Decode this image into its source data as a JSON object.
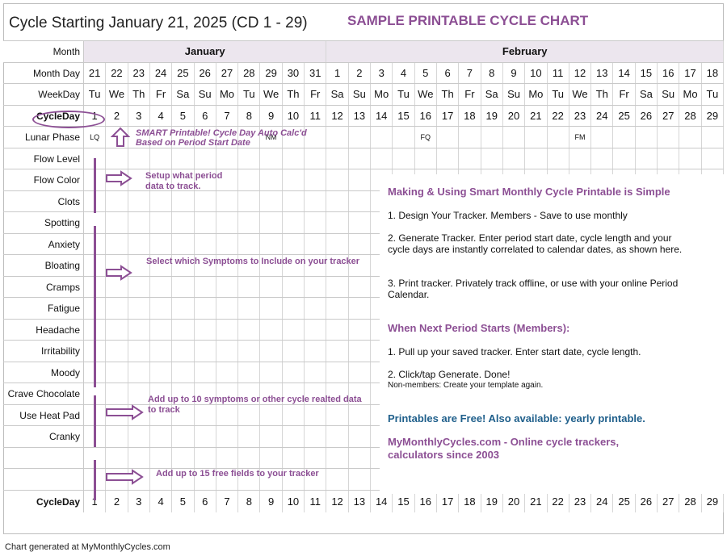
{
  "header": {
    "title": "Cycle Starting January 21, 2025 (CD 1 - 29)",
    "sample_title": "SAMPLE PRINTABLE CYCLE CHART"
  },
  "labels": {
    "month": "Month",
    "month_day": "Month Day",
    "weekday": "WeekDay",
    "cycle_day": "CycleDay"
  },
  "months": [
    {
      "name": "January",
      "days": 11
    },
    {
      "name": "February",
      "days": 18
    }
  ],
  "month_days": [
    "21",
    "22",
    "23",
    "24",
    "25",
    "26",
    "27",
    "28",
    "29",
    "30",
    "31",
    "1",
    "2",
    "3",
    "4",
    "5",
    "6",
    "7",
    "8",
    "9",
    "10",
    "11",
    "12",
    "13",
    "14",
    "15",
    "16",
    "17",
    "18"
  ],
  "weekdays": [
    "Tu",
    "We",
    "Th",
    "Fr",
    "Sa",
    "Su",
    "Mo",
    "Tu",
    "We",
    "Th",
    "Fr",
    "Sa",
    "Su",
    "Mo",
    "Tu",
    "We",
    "Th",
    "Fr",
    "Sa",
    "Su",
    "Mo",
    "Tu",
    "We",
    "Th",
    "Fr",
    "Sa",
    "Su",
    "Mo",
    "Tu"
  ],
  "cycle_days": [
    "1",
    "2",
    "3",
    "4",
    "5",
    "6",
    "7",
    "8",
    "9",
    "10",
    "11",
    "12",
    "13",
    "14",
    "15",
    "16",
    "17",
    "18",
    "19",
    "20",
    "21",
    "22",
    "23",
    "24",
    "25",
    "26",
    "27",
    "28",
    "29"
  ],
  "lunar": {
    "label": "Lunar Phase",
    "marks": {
      "0": "LQ",
      "8": "NM",
      "15": "FQ",
      "22": "FM"
    }
  },
  "tracked_rows": [
    "Flow Level",
    "Flow Color",
    "Clots",
    "Spotting",
    "Anxiety",
    "Bloating",
    "Cramps",
    "Fatigue",
    "Headache",
    "Irritability",
    "Moody",
    "Crave Chocolate",
    "Use Heat Pad",
    "Cranky",
    "",
    ""
  ],
  "annotations": {
    "smart_1": "SMART Printable! Cycle Day Auto Calc'd",
    "smart_2": "Based on Period Start Date",
    "setup_1": "Setup what period",
    "setup_2": "data to track.",
    "symptoms": "Select which Symptoms to Include on your tracker",
    "add10_1": "Add up to 10 symptoms or other cycle realted data",
    "add10_2": "to track",
    "add15": "Add up to 15 free fields to your tracker"
  },
  "info": {
    "h1": "Making & Using Smart Monthly Cycle Printable is Simple",
    "s1": "1. Design Your Tracker. Members - Save to use monthly",
    "s2": "2. Generate Tracker. Enter period start date, cycle length and your cycle days are instantly correlated to calendar dates, as shown here.",
    "s3": "3. Print tracker. Privately track offline, or use with your online Period Calendar.",
    "h2": "When Next Period Starts (Members):",
    "n1": "1. Pull up your saved tracker. Enter start date, cycle length.",
    "n2": "2. Click/tap Generate. Done!",
    "n3": "Non-members: Create your template again.",
    "free": "Printables are Free! Also available: yearly printable.",
    "site": "MyMonthlyCycles.com - Online cycle trackers, calculators since 2003"
  },
  "footer": "Chart generated at MyMonthlyCycles.com",
  "colors": {
    "accent": "#8c4f94",
    "header_shade": "#ece6ee",
    "link_blue": "#1f5f8b"
  }
}
